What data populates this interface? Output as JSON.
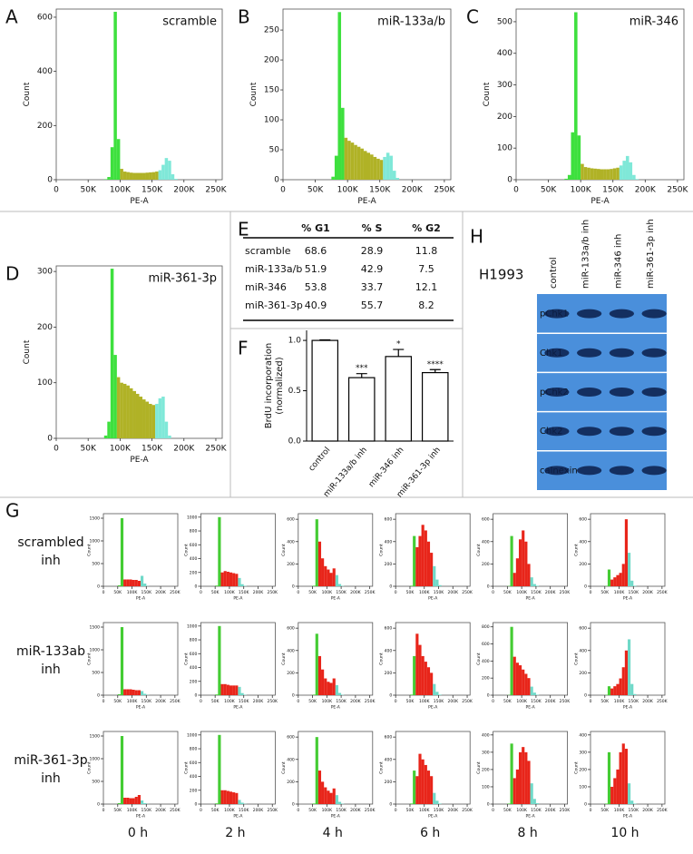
{
  "panels_ad": [
    {
      "label": "A",
      "title": "scramble",
      "xlabel": "PE-A",
      "ylabel": "Count",
      "xlim": [
        0,
        260000
      ],
      "xticks": [
        0,
        {
          "value": 50000,
          "label": "50K"
        },
        {
          "value": 100000,
          "label": "100K"
        },
        {
          "value": 150000,
          "label": "150K"
        },
        {
          "value": 200000,
          "label": "200K"
        },
        {
          "value": 250000,
          "label": "250K"
        }
      ],
      "ylim": [
        0,
        630
      ],
      "yticks": [
        0,
        200,
        400,
        600
      ],
      "bins": [
        70000,
        75000,
        80000,
        85000,
        90000,
        95000,
        100000,
        105000,
        110000,
        115000,
        120000,
        125000,
        130000,
        135000,
        140000,
        145000,
        150000,
        155000,
        160000,
        165000,
        170000,
        175000,
        180000,
        185000,
        190000
      ],
      "values": [
        0,
        2,
        10,
        120,
        620,
        150,
        40,
        30,
        28,
        26,
        25,
        25,
        25,
        25,
        26,
        27,
        28,
        30,
        35,
        55,
        80,
        70,
        20,
        3
      ],
      "bin_colors": [
        "#3ee03e",
        "#3ee03e",
        "#3ee03e",
        "#3ee03e",
        "#3ee03e",
        "#3ee03e",
        "#b0b226",
        "#b0b226",
        "#b0b226",
        "#b0b226",
        "#b0b226",
        "#b0b226",
        "#b0b226",
        "#b0b226",
        "#b0b226",
        "#b0b226",
        "#b0b226",
        "#b0b226",
        "#7fe8d8",
        "#7fe8d8",
        "#7fe8d8",
        "#7fe8d8",
        "#7fe8d8",
        "#7fe8d8"
      ]
    },
    {
      "label": "B",
      "title": "miR-133a/b",
      "xlabel": "PE-A",
      "ylabel": "Count",
      "xlim": [
        0,
        260000
      ],
      "xticks": [
        0,
        {
          "value": 50000,
          "label": "50K"
        },
        {
          "value": 100000,
          "label": "100K"
        },
        {
          "value": 150000,
          "label": "150K"
        },
        {
          "value": 200000,
          "label": "200K"
        },
        {
          "value": 250000,
          "label": "250K"
        }
      ],
      "ylim": [
        0,
        285
      ],
      "yticks": [
        0,
        50,
        100,
        150,
        200,
        250
      ],
      "bins": [
        70000,
        75000,
        80000,
        85000,
        90000,
        95000,
        100000,
        105000,
        110000,
        115000,
        120000,
        125000,
        130000,
        135000,
        140000,
        145000,
        150000,
        155000,
        160000,
        165000,
        170000,
        175000,
        180000,
        185000,
        190000
      ],
      "values": [
        0,
        5,
        40,
        280,
        120,
        70,
        65,
        62,
        58,
        55,
        52,
        48,
        45,
        42,
        38,
        35,
        33,
        38,
        45,
        40,
        15,
        3,
        0,
        0
      ],
      "bin_colors": [
        "#3ee03e",
        "#3ee03e",
        "#3ee03e",
        "#3ee03e",
        "#3ee03e",
        "#b0b226",
        "#b0b226",
        "#b0b226",
        "#b0b226",
        "#b0b226",
        "#b0b226",
        "#b0b226",
        "#b0b226",
        "#b0b226",
        "#b0b226",
        "#b0b226",
        "#b0b226",
        "#7fe8d8",
        "#7fe8d8",
        "#7fe8d8",
        "#7fe8d8",
        "#7fe8d8",
        "#7fe8d8",
        "#7fe8d8"
      ]
    },
    {
      "label": "C",
      "title": "miR-346",
      "xlabel": "PE-A",
      "ylabel": "Count",
      "xlim": [
        0,
        260000
      ],
      "xticks": [
        0,
        {
          "value": 50000,
          "label": "50K"
        },
        {
          "value": 100000,
          "label": "100K"
        },
        {
          "value": 150000,
          "label": "150K"
        },
        {
          "value": 200000,
          "label": "200K"
        },
        {
          "value": 250000,
          "label": "250K"
        }
      ],
      "ylim": [
        0,
        540
      ],
      "yticks": [
        0,
        100,
        200,
        300,
        400,
        500
      ],
      "bins": [
        70000,
        75000,
        80000,
        85000,
        90000,
        95000,
        100000,
        105000,
        110000,
        115000,
        120000,
        125000,
        130000,
        135000,
        140000,
        145000,
        150000,
        155000,
        160000,
        165000,
        170000,
        175000,
        180000,
        185000,
        190000
      ],
      "values": [
        0,
        3,
        15,
        150,
        530,
        140,
        50,
        40,
        38,
        36,
        35,
        34,
        33,
        33,
        33,
        34,
        36,
        38,
        45,
        60,
        75,
        55,
        15,
        2
      ],
      "bin_colors": [
        "#3ee03e",
        "#3ee03e",
        "#3ee03e",
        "#3ee03e",
        "#3ee03e",
        "#3ee03e",
        "#b0b226",
        "#b0b226",
        "#b0b226",
        "#b0b226",
        "#b0b226",
        "#b0b226",
        "#b0b226",
        "#b0b226",
        "#b0b226",
        "#b0b226",
        "#b0b226",
        "#b0b226",
        "#7fe8d8",
        "#7fe8d8",
        "#7fe8d8",
        "#7fe8d8",
        "#7fe8d8",
        "#7fe8d8"
      ]
    },
    {
      "label": "D",
      "title": "miR-361-3p",
      "xlabel": "PE-A",
      "ylabel": "Count",
      "xlim": [
        0,
        260000
      ],
      "xticks": [
        0,
        {
          "value": 50000,
          "label": "50K"
        },
        {
          "value": 100000,
          "label": "100K"
        },
        {
          "value": 150000,
          "label": "150K"
        },
        {
          "value": 200000,
          "label": "200K"
        },
        {
          "value": 250000,
          "label": "250K"
        }
      ],
      "ylim": [
        0,
        310
      ],
      "yticks": [
        0,
        100,
        200,
        300
      ],
      "bins": [
        70000,
        75000,
        80000,
        85000,
        90000,
        95000,
        100000,
        105000,
        110000,
        115000,
        120000,
        125000,
        130000,
        135000,
        140000,
        145000,
        150000,
        155000,
        160000,
        165000,
        170000,
        175000,
        180000,
        185000,
        190000
      ],
      "values": [
        0,
        5,
        30,
        305,
        150,
        110,
        100,
        98,
        95,
        90,
        85,
        80,
        75,
        70,
        66,
        62,
        60,
        62,
        72,
        75,
        30,
        5,
        0,
        0
      ],
      "bin_colors": [
        "#3ee03e",
        "#3ee03e",
        "#3ee03e",
        "#3ee03e",
        "#3ee03e",
        "#b0b226",
        "#b0b226",
        "#b0b226",
        "#b0b226",
        "#b0b226",
        "#b0b226",
        "#b0b226",
        "#b0b226",
        "#b0b226",
        "#b0b226",
        "#b0b226",
        "#b0b226",
        "#7fe8d8",
        "#7fe8d8",
        "#7fe8d8",
        "#7fe8d8",
        "#7fe8d8",
        "#7fe8d8",
        "#7fe8d8"
      ]
    }
  ],
  "panel_e": {
    "label": "E",
    "header": [
      "% G1",
      "% S",
      "% G2"
    ],
    "rows": [
      [
        "scramble",
        "68.6",
        "28.9",
        "11.8"
      ],
      [
        "miR-133a/b",
        "51.9",
        "42.9",
        "7.5"
      ],
      [
        "miR-346",
        "53.8",
        "33.7",
        "12.1"
      ],
      [
        "miR-361-3p",
        "40.9",
        "55.7",
        "8.2"
      ]
    ]
  },
  "panel_f": {
    "label": "F",
    "type": "bar",
    "ylabel": [
      "BrdU incorporation",
      "(normalized)"
    ],
    "categories": [
      "control",
      "miR-133a/b inh",
      "miR-346 inh",
      "miR-361-3p inh"
    ],
    "values": [
      1.0,
      0.63,
      0.84,
      0.68
    ],
    "errors": [
      0.005,
      0.04,
      0.07,
      0.03
    ],
    "significance": [
      null,
      "***",
      "*",
      "****"
    ],
    "ylim": [
      0,
      1.1
    ],
    "yticks": [
      {
        "value": 0,
        "label": "0.0"
      },
      {
        "value": 0.5,
        "label": "0.5"
      },
      {
        "value": 1,
        "label": "1.0"
      }
    ],
    "color": "#ffffff"
  },
  "panel_h": {
    "label": "H",
    "cell_line": "H1993",
    "lanes": [
      "control",
      "miR-133a/b inh",
      "miR-346 inh",
      "miR-361-3p inh"
    ],
    "rows": [
      "pChk1",
      "Chk1",
      "pChk2",
      "Chk2",
      "calnexin"
    ]
  },
  "panel_g": {
    "label": "G",
    "row_labels": [
      [
        "scrambled",
        "inh"
      ],
      [
        "miR-133ab",
        "inh"
      ],
      [
        "miR-361-3p",
        "inh"
      ]
    ],
    "columns": [
      "0 h",
      "2 h",
      "4 h",
      "6 h",
      "8 h",
      "10 h"
    ],
    "xlabel": "PE-A",
    "ylabel": "Count",
    "xlim": [
      0,
      260000
    ],
    "xticks": [
      0,
      {
        "value": 50000,
        "label": "50K"
      },
      {
        "value": 100000,
        "label": "100K"
      },
      {
        "value": 150000,
        "label": "150K"
      },
      {
        "value": 200000,
        "label": "200K"
      },
      {
        "value": 250000,
        "label": "250K"
      }
    ],
    "bins": [
      50000,
      60000,
      70000,
      80000,
      90000,
      100000,
      110000,
      120000,
      130000,
      140000,
      150000,
      160000
    ],
    "bin_colors": [
      "#44cc33",
      "#44cc33",
      "#e8251a",
      "#e8251a",
      "#e8251a",
      "#e8251a",
      "#e8251a",
      "#e8251a",
      "#6fd9c8",
      "#6fd9c8",
      "#6fd9c8"
    ],
    "cells": [
      [
        {
          "ylim": [
            0,
            1600
          ],
          "yticks": [
            0,
            500,
            1000,
            1500
          ],
          "values": [
            20,
            1500,
            150,
            150,
            150,
            140,
            140,
            120,
            230,
            60,
            5
          ]
        },
        {
          "ylim": [
            0,
            1050
          ],
          "yticks": [
            0,
            200,
            400,
            600,
            800,
            1000
          ],
          "values": [
            10,
            1000,
            200,
            220,
            210,
            200,
            190,
            180,
            120,
            30,
            5
          ]
        },
        {
          "ylim": [
            0,
            650
          ],
          "yticks": [
            0,
            200,
            400,
            600
          ],
          "values": [
            5,
            600,
            400,
            250,
            180,
            150,
            120,
            160,
            100,
            20,
            3
          ]
        },
        {
          "ylim": [
            0,
            650
          ],
          "yticks": [
            0,
            200,
            400,
            600
          ],
          "values": [
            5,
            450,
            350,
            450,
            550,
            500,
            400,
            300,
            180,
            60,
            10
          ]
        },
        {
          "ylim": [
            0,
            650
          ],
          "yticks": [
            0,
            200,
            400,
            600
          ],
          "values": [
            3,
            450,
            120,
            250,
            420,
            500,
            400,
            200,
            80,
            20,
            5
          ]
        },
        {
          "ylim": [
            0,
            650
          ],
          "yticks": [
            0,
            200,
            400,
            600
          ],
          "values": [
            3,
            150,
            60,
            80,
            100,
            120,
            200,
            600,
            300,
            50,
            5
          ]
        }
      ],
      [
        {
          "ylim": [
            0,
            1600
          ],
          "yticks": [
            0,
            500,
            1000,
            1500
          ],
          "values": [
            20,
            1500,
            130,
            130,
            130,
            120,
            110,
            110,
            90,
            30,
            5
          ]
        },
        {
          "ylim": [
            0,
            1050
          ],
          "yticks": [
            0,
            200,
            400,
            600,
            800,
            1000
          ],
          "values": [
            10,
            1000,
            160,
            160,
            150,
            140,
            140,
            140,
            120,
            30,
            5
          ]
        },
        {
          "ylim": [
            0,
            650
          ],
          "yticks": [
            0,
            200,
            400,
            600
          ],
          "values": [
            5,
            550,
            350,
            230,
            150,
            120,
            110,
            150,
            90,
            20,
            3
          ]
        },
        {
          "ylim": [
            0,
            650
          ],
          "yticks": [
            0,
            200,
            400,
            600
          ],
          "values": [
            5,
            350,
            550,
            450,
            350,
            300,
            250,
            200,
            100,
            30,
            5
          ]
        },
        {
          "ylim": [
            0,
            850
          ],
          "yticks": [
            0,
            200,
            400,
            600,
            800
          ],
          "values": [
            3,
            800,
            450,
            380,
            350,
            300,
            250,
            200,
            100,
            30,
            5
          ]
        },
        {
          "ylim": [
            0,
            650
          ],
          "yticks": [
            0,
            200,
            400,
            600
          ],
          "values": [
            3,
            80,
            60,
            80,
            100,
            150,
            250,
            400,
            500,
            100,
            10
          ]
        }
      ],
      [
        {
          "ylim": [
            0,
            1600
          ],
          "yticks": [
            0,
            500,
            1000,
            1500
          ],
          "values": [
            20,
            1500,
            140,
            140,
            130,
            130,
            160,
            200,
            80,
            20,
            3
          ]
        },
        {
          "ylim": [
            0,
            1050
          ],
          "yticks": [
            0,
            200,
            400,
            600,
            800,
            1000
          ],
          "values": [
            10,
            1000,
            200,
            200,
            190,
            180,
            170,
            160,
            60,
            20,
            3
          ]
        },
        {
          "ylim": [
            0,
            650
          ],
          "yticks": [
            0,
            200,
            400,
            600
          ],
          "values": [
            5,
            600,
            300,
            200,
            150,
            120,
            100,
            140,
            80,
            20,
            3
          ]
        },
        {
          "ylim": [
            0,
            650
          ],
          "yticks": [
            0,
            200,
            400,
            600
          ],
          "values": [
            5,
            300,
            250,
            450,
            400,
            350,
            300,
            250,
            100,
            30,
            5
          ]
        },
        {
          "ylim": [
            0,
            420
          ],
          "yticks": [
            0,
            100,
            200,
            300,
            400
          ],
          "values": [
            3,
            350,
            150,
            200,
            300,
            330,
            300,
            250,
            120,
            30,
            5
          ]
        },
        {
          "ylim": [
            0,
            420
          ],
          "yticks": [
            0,
            100,
            200,
            300,
            400
          ],
          "values": [
            3,
            300,
            100,
            150,
            200,
            300,
            350,
            320,
            120,
            20,
            3
          ]
        }
      ]
    ]
  }
}
